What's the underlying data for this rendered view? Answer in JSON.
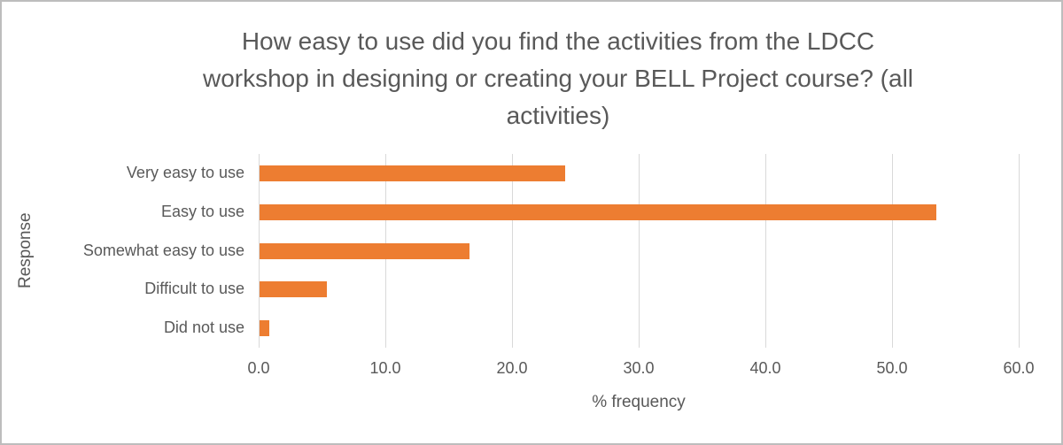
{
  "header": {
    "title_lines": [
      "How easy to use did you find the activities from the LDCC",
      "workshop in designing or creating your BELL Project course? (all",
      "activities)"
    ]
  },
  "chart_data": {
    "type": "bar",
    "orientation": "horizontal",
    "title": "How easy to use did you find the activities from the LDCC workshop in designing or creating your BELL Project course? (all activities)",
    "categories": [
      "Very easy to use",
      "Easy to use",
      "Somewhat easy to use",
      "Difficult to use",
      "Did not use"
    ],
    "values": [
      24.1,
      53.4,
      16.6,
      5.3,
      0.8
    ],
    "xlabel": "% frequency",
    "ylabel": "Response",
    "xlim": [
      0,
      60
    ],
    "x_ticks": [
      0,
      10,
      20,
      30,
      40,
      50,
      60
    ],
    "x_tick_labels": [
      "0.0",
      "10.0",
      "20.0",
      "30.0",
      "40.0",
      "50.0",
      "60.0"
    ],
    "grid": true,
    "legend": false,
    "bar_color": "#ed7d31",
    "gridline_color": "#d9d9d9",
    "text_color": "#595959",
    "border_color": "#bdbdbd"
  }
}
